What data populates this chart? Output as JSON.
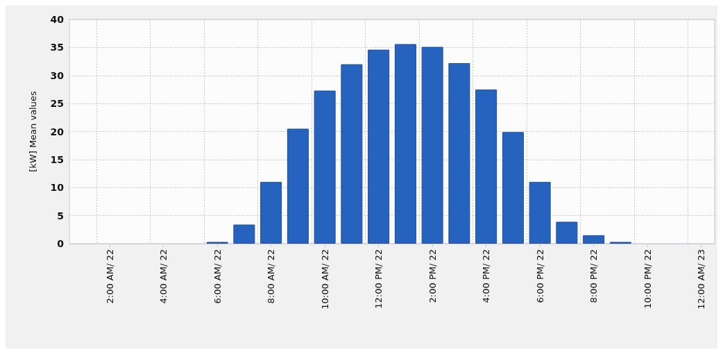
{
  "chart_data": {
    "type": "bar",
    "ylabel": "[kW] Mean values",
    "categories": [
      null,
      "2:00 AM/ 22",
      null,
      "4:00 AM/ 22",
      null,
      "6:00 AM/ 22",
      null,
      "8:00 AM/ 22",
      null,
      "10:00 AM/ 22",
      null,
      "12:00 PM/ 22",
      null,
      "2:00 PM/ 22",
      null,
      "4:00 PM/ 22",
      null,
      "6:00 PM/ 22",
      null,
      "8:00 PM/ 22",
      null,
      "10:00 PM/ 22",
      null,
      "12:00 AM/ 23"
    ],
    "values": [
      null,
      null,
      null,
      null,
      null,
      0.3,
      3.4,
      11.0,
      20.5,
      27.3,
      32.0,
      34.6,
      35.6,
      35.1,
      32.2,
      27.5,
      19.9,
      11.0,
      3.9,
      1.5,
      0.3,
      null,
      null,
      null
    ],
    "color": "#2563be",
    "ylim": [
      0,
      40
    ],
    "yticks": [
      0,
      5,
      10,
      15,
      20,
      25,
      30,
      35,
      40
    ],
    "grid": true
  }
}
